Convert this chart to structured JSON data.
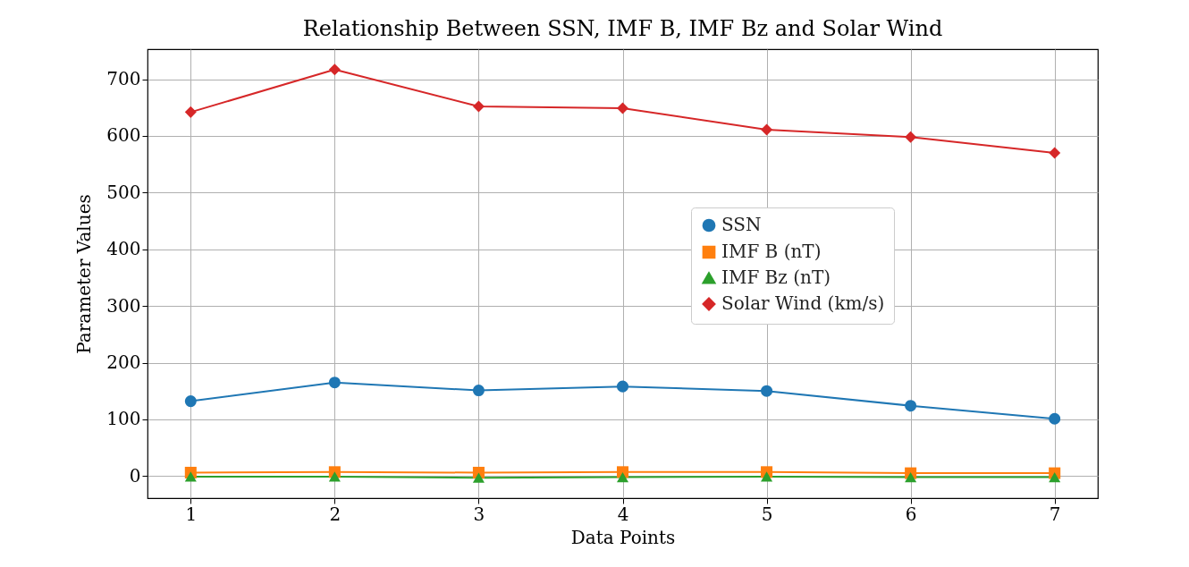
{
  "chart_data": {
    "type": "line",
    "title": "Relationship Between SSN, IMF B, IMF Bz and Solar Wind",
    "xlabel": "Data Points",
    "ylabel": "Parameter Values",
    "x": [
      1,
      2,
      3,
      4,
      5,
      6,
      7
    ],
    "xlim": [
      0.7,
      7.3
    ],
    "xticks": [
      1,
      2,
      3,
      4,
      5,
      6,
      7
    ],
    "ylim": [
      -39,
      753
    ],
    "yticks": [
      0,
      100,
      200,
      300,
      400,
      500,
      600,
      700
    ],
    "grid": true,
    "legend": "right",
    "line_style": "solid",
    "series": [
      {
        "name": "SSN",
        "color": "#1f77b4",
        "marker": "circle",
        "values": [
          132,
          165,
          151,
          158,
          150,
          124,
          101
        ]
      },
      {
        "name": "IMF B (nT)",
        "color": "#ff7f0e",
        "marker": "square",
        "values": [
          6,
          7,
          6,
          7,
          7,
          5,
          5
        ]
      },
      {
        "name": "IMF Bz (nT)",
        "color": "#2ca02c",
        "marker": "triangle",
        "values": [
          -1,
          -1,
          -3,
          -2,
          -1,
          -2,
          -2
        ]
      },
      {
        "name": "Solar Wind (km/s)",
        "color": "#d62728",
        "marker": "diamond",
        "values": [
          642,
          717,
          652,
          649,
          611,
          598,
          570
        ]
      }
    ]
  }
}
